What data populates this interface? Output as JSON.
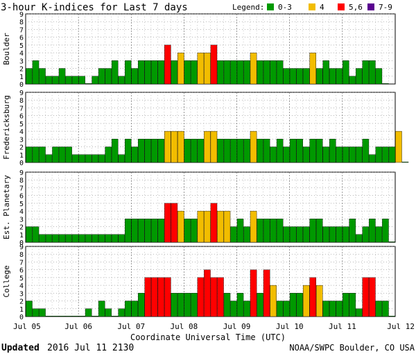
{
  "title": "3-hour K-indices for Last 7 days",
  "legend": {
    "label": "Legend:",
    "items": [
      {
        "label": "0-3",
        "color": "#009900"
      },
      {
        "label": "4",
        "color": "#f2bd00"
      },
      {
        "label": "5,6",
        "color": "#ff0000"
      },
      {
        "label": "7-9",
        "color": "#5a0090"
      }
    ]
  },
  "footer": {
    "updated_label": "Updated",
    "updated_value": "2016 Jul 11 2130",
    "source": "NOAA/SWPC Boulder, CO USA"
  },
  "chart_data": {
    "type": "bar",
    "xlabel": "Coordinate Universal Time (UTC)",
    "x_ticks": [
      "Jul 05",
      "Jul 06",
      "Jul 07",
      "Jul 08",
      "Jul 09",
      "Jul 10",
      "Jul 11",
      "Jul 12"
    ],
    "ylim": [
      0,
      9
    ],
    "y_ticks": [
      0,
      1,
      2,
      3,
      4,
      5,
      6,
      7,
      8,
      9
    ],
    "grid": true,
    "color_scale": {
      "0-3": "#009900",
      "4": "#f2bd00",
      "5,6": "#ff0000",
      "7-9": "#5a0090"
    },
    "series": [
      {
        "name": "Boulder",
        "values": [
          2,
          3,
          2,
          1,
          1,
          2,
          1,
          1,
          1,
          0,
          1,
          2,
          2,
          3,
          1,
          3,
          2,
          3,
          3,
          3,
          3,
          5,
          3,
          4,
          3,
          3,
          4,
          4,
          5,
          3,
          3,
          3,
          3,
          3,
          4,
          3,
          3,
          3,
          3,
          2,
          2,
          2,
          2,
          4,
          2,
          3,
          2,
          2,
          3,
          1,
          2,
          3,
          3,
          2,
          0
        ]
      },
      {
        "name": "Fredericksburg",
        "values": [
          2,
          2,
          2,
          1,
          2,
          2,
          2,
          1,
          1,
          1,
          1,
          1,
          2,
          3,
          1,
          3,
          2,
          3,
          3,
          3,
          3,
          4,
          4,
          4,
          3,
          3,
          3,
          4,
          4,
          3,
          3,
          3,
          3,
          3,
          4,
          3,
          3,
          2,
          3,
          2,
          3,
          3,
          2,
          3,
          3,
          2,
          3,
          2,
          2,
          2,
          2,
          3,
          1,
          2,
          2,
          2,
          4,
          0
        ]
      },
      {
        "name": "Est. Planetary",
        "values": [
          2,
          2,
          1,
          1,
          1,
          1,
          1,
          1,
          1,
          1,
          1,
          1,
          1,
          1,
          1,
          3,
          3,
          3,
          3,
          3,
          3,
          5,
          5,
          4,
          3,
          3,
          4,
          4,
          5,
          4,
          4,
          2,
          3,
          2,
          4,
          3,
          3,
          3,
          3,
          2,
          2,
          2,
          2,
          3,
          3,
          2,
          2,
          2,
          2,
          3,
          1,
          2,
          3,
          2,
          3,
          0
        ]
      },
      {
        "name": "College",
        "values": [
          2,
          1,
          1,
          0,
          0,
          0,
          0,
          0,
          0,
          1,
          0,
          2,
          1,
          0,
          1,
          2,
          2,
          3,
          5,
          5,
          5,
          5,
          3,
          3,
          3,
          3,
          5,
          6,
          5,
          5,
          3,
          2,
          3,
          2,
          6,
          3,
          6,
          4,
          2,
          2,
          3,
          3,
          4,
          5,
          4,
          2,
          2,
          2,
          3,
          3,
          1,
          5,
          5,
          2,
          2,
          0
        ]
      }
    ]
  }
}
